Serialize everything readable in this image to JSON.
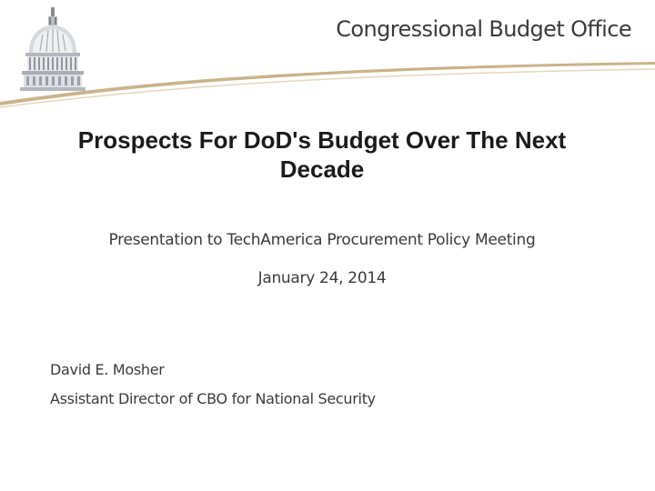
{
  "header": {
    "org_name": "Congressional Budget Office",
    "logo_icon": "capitol-dome-icon",
    "accent_color": "#c9b38a"
  },
  "slide": {
    "title": "Prospects For DoD's Budget Over The Next Decade",
    "event": "Presentation to TechAmerica Procurement Policy Meeting",
    "date": "January 24, 2014"
  },
  "presenter": {
    "name": "David E. Mosher",
    "role": "Assistant Director of CBO for National Security"
  }
}
